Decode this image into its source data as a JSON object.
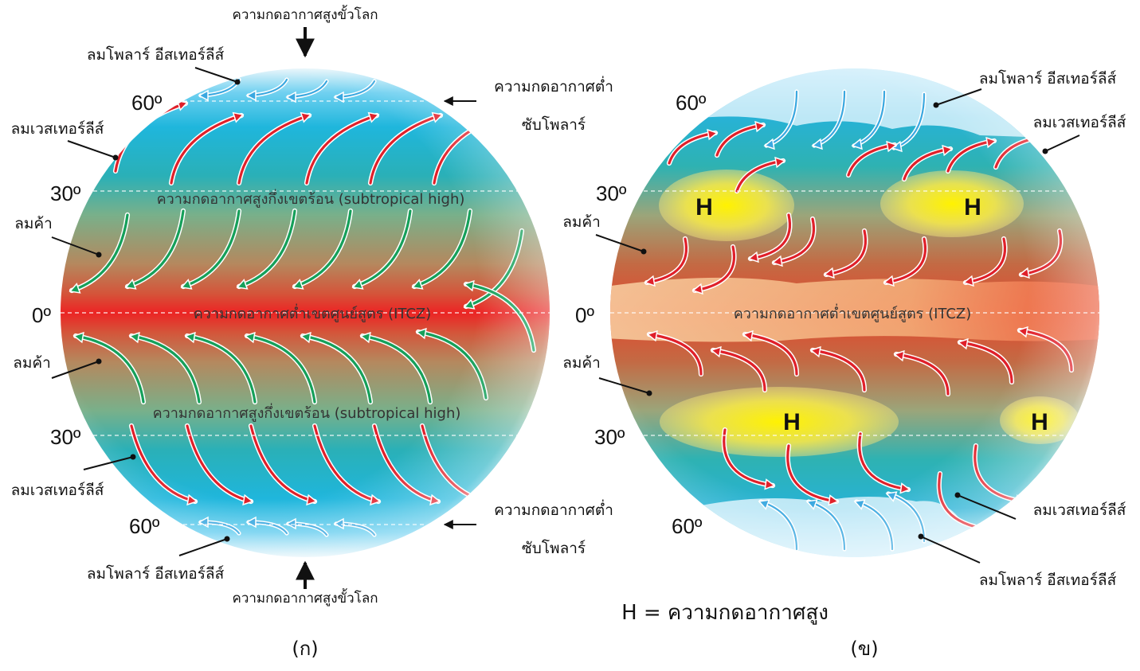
{
  "panel_a": {
    "caption": "(ก)",
    "top_label": "ความกดอากาศสูงขั้วโลก",
    "bottom_label": "ความกดอากาศสูงขั้วโลก",
    "polar_easterlies_top": "ลมโพลาร์ อีสเทอร์ลีส์",
    "polar_easterlies_bottom": "ลมโพลาร์ อีสเทอร์ลีส์",
    "westerlies_top": "ลมเวสเทอร์ลีส์",
    "westerlies_bottom": "ลมเวสเทอร์ลีส์",
    "trade_top": "ลมค้า",
    "trade_bottom": "ลมค้า",
    "subpolar_low_top_line1": "ความกดอากาศต่ำ",
    "subpolar_low_top_line2": "ซับโพลาร์",
    "subpolar_low_bottom_line1": "ความกดอากาศต่ำ",
    "subpolar_low_bottom_line2": "ซับโพลาร์",
    "subtropical_high_top": "ความกดอากาศสูงกึ่งเขตร้อน (subtropical high)",
    "subtropical_high_bottom": "ความกดอากาศสูงกึ่งเขตร้อน (subtropical high)",
    "itcz": "ความกดอากาศต่ำเขตศูนย์สูตร (ITCZ)",
    "lat_60_top": "60º",
    "lat_30_top": "30º",
    "lat_0": "0º",
    "lat_30_bottom": "30º",
    "lat_60_bottom": "60º"
  },
  "panel_b": {
    "caption": "(ข)",
    "polar_easterlies_top": "ลมโพลาร์ อีสเทอร์ลีส์",
    "polar_easterlies_bottom": "ลมโพลาร์ อีสเทอร์ลีส์",
    "westerlies_top": "ลมเวสเทอร์ลีส์",
    "westerlies_bottom": "ลมเวสเทอร์ลีส์",
    "trade_top": "ลมค้า",
    "trade_bottom": "ลมค้า",
    "itcz": "ความกดอากาศต่ำเขตศูนย์สูตร (ITCZ)",
    "high_marker": "H",
    "lat_60_top": "60º",
    "lat_30_top": "30º",
    "lat_0": "0º",
    "lat_30_bottom": "30º",
    "lat_60_bottom": "60º",
    "legend": "H = ความกดอากาศสูง"
  },
  "colors": {
    "westerly_arrow": "#e0202a",
    "trade_arrow": "#16a05a",
    "polar_arrow": "#3aa8e0",
    "ocean": "#25b3c9",
    "equator_hot": "#e8342a",
    "high_cell": "#f7ef2a"
  }
}
